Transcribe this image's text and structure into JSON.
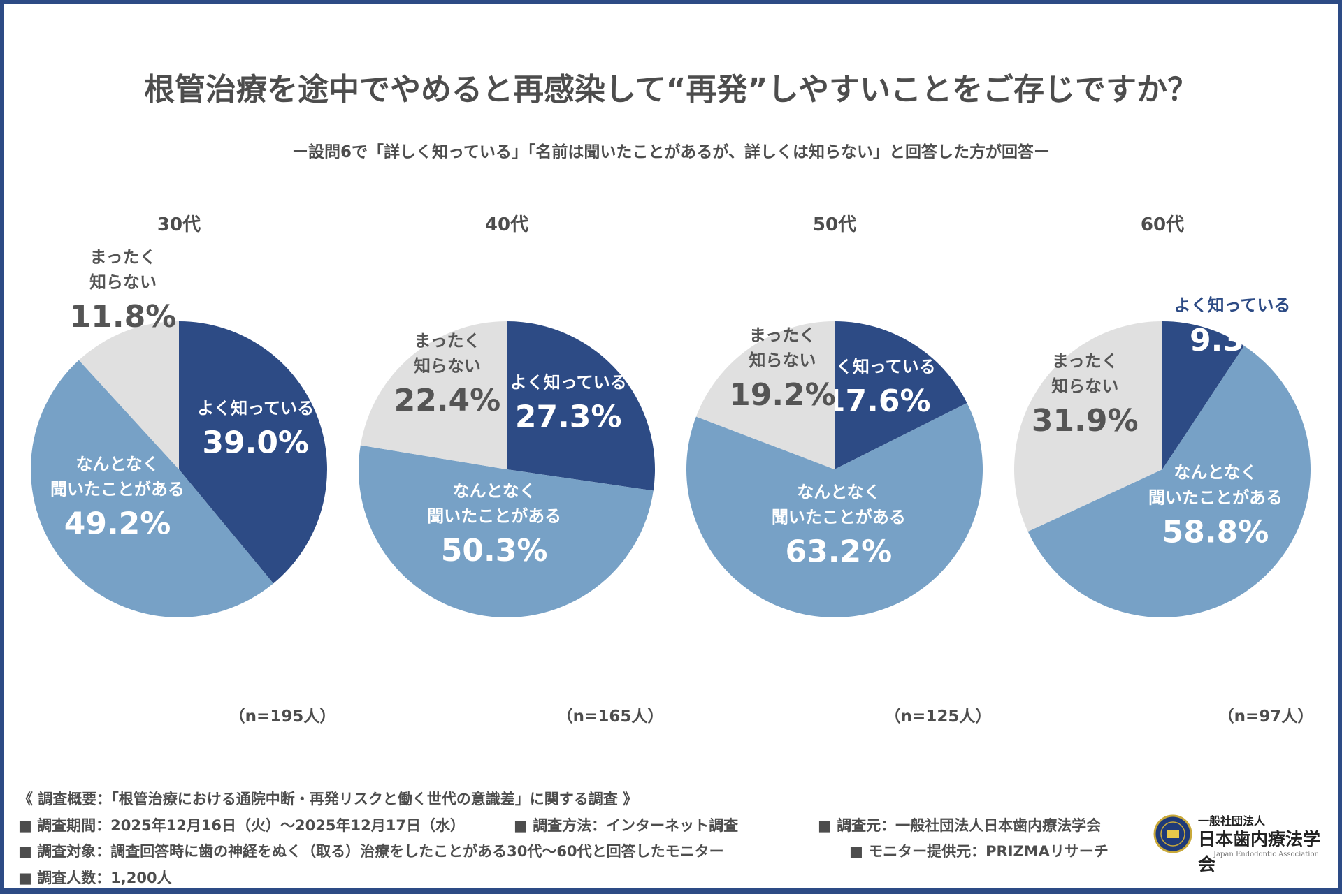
{
  "title": "根管治療を途中でやめると再感染して“再発”しやすいことをご存じですか？",
  "subtitle": "ー設問6で「詳しく知っている」「名前は聞いたことがあるが、詳しくは知らない」と回答した方が回答ー",
  "colors": {
    "know_well": "#2d4b85",
    "heard": "#77a1c6",
    "not_know": "#e0e0e0",
    "frame": "#2d4b85"
  },
  "chart_data": [
    {
      "type": "pie",
      "title": "30代",
      "n_label": "（n=195人）",
      "slices": [
        {
          "label": "よく知っている",
          "value": 39.0,
          "display": "39.0%"
        },
        {
          "label": "なんとなく\n聞いたことがある",
          "value": 49.2,
          "display": "49.2%"
        },
        {
          "label": "まったく\n知らない",
          "value": 11.8,
          "display": "11.8%"
        }
      ]
    },
    {
      "type": "pie",
      "title": "40代",
      "n_label": "（n=165人）",
      "slices": [
        {
          "label": "よく知っている",
          "value": 27.3,
          "display": "27.3%"
        },
        {
          "label": "なんとなく\n聞いたことがある",
          "value": 50.3,
          "display": "50.3%"
        },
        {
          "label": "まったく\n知らない",
          "value": 22.4,
          "display": "22.4%"
        }
      ]
    },
    {
      "type": "pie",
      "title": "50代",
      "n_label": "（n=125人）",
      "slices": [
        {
          "label": "よく知っている",
          "value": 17.6,
          "display": "17.6%"
        },
        {
          "label": "なんとなく\n聞いたことがある",
          "value": 63.2,
          "display": "63.2%"
        },
        {
          "label": "まったく\n知らない",
          "value": 19.2,
          "display": "19.2%"
        }
      ]
    },
    {
      "type": "pie",
      "title": "60代",
      "n_label": "（n=97人）",
      "slices": [
        {
          "label": "よく知っている",
          "value": 9.3,
          "display": "9.3%"
        },
        {
          "label": "なんとなく\n聞いたことがある",
          "value": 58.8,
          "display": "58.8%"
        },
        {
          "label": "まったく\n知らない",
          "value": 31.9,
          "display": "31.9%"
        }
      ]
    }
  ],
  "footer": {
    "overview": "《 調査概要：「根管治療における通院中断・再発リスクと働く世代の意識差」に関する調査 》",
    "period": "■ 調査期間：2025年12月16日（火）〜2025年12月17日（水）",
    "method": "■ 調査方法：インターネット調査",
    "organizer": "■ 調査元：一般社団法人日本歯内療法学会",
    "target": "■ 調査対象：調査回答時に歯の神経をぬく（取る）治療をしたことがある30代〜60代と回答したモニター",
    "provider": "■ モニター提供元：PRIZMAリサーチ",
    "count": "■ 調査人数：1,200人"
  },
  "logo": {
    "small": "一般社団法人",
    "name": "日本歯内療法学会",
    "english": "Japan Endodontic Association"
  }
}
